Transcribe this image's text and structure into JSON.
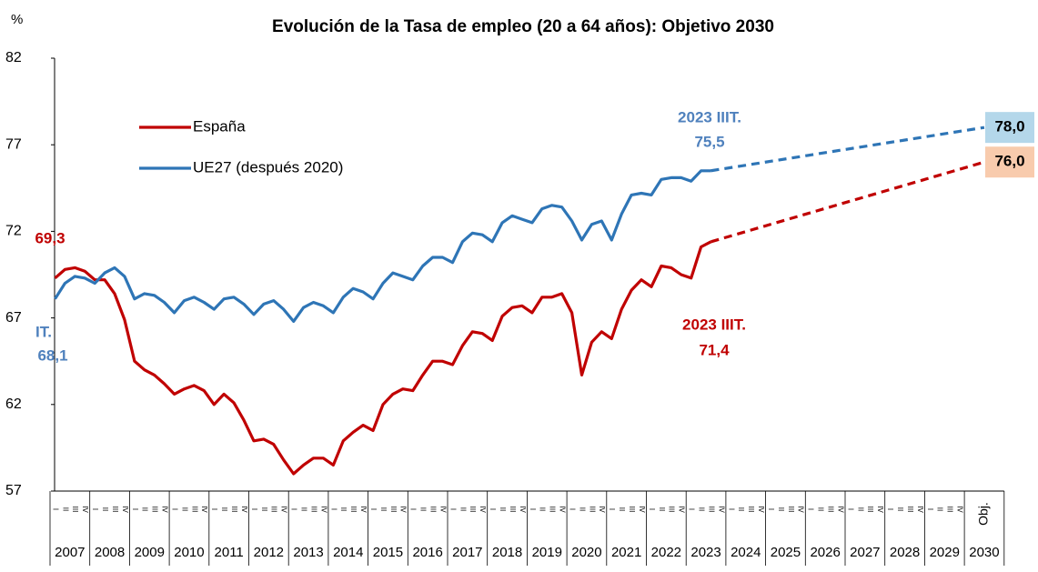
{
  "chart_data": {
    "type": "line",
    "title": "Evolución de la Tasa de empleo (20 a 64 años): Objetivo 2030",
    "y_unit": "%",
    "ylim": [
      57,
      82
    ],
    "yticks": [
      57,
      62,
      67,
      72,
      77,
      82
    ],
    "years": [
      "2007",
      "2008",
      "2009",
      "2010",
      "2011",
      "2012",
      "2013",
      "2014",
      "2015",
      "2016",
      "2017",
      "2018",
      "2019",
      "2020",
      "2021",
      "2022",
      "2023",
      "2024",
      "2025",
      "2026",
      "2027",
      "2028",
      "2029",
      "2030"
    ],
    "quarters": [
      "I",
      "II",
      "III",
      "IV"
    ],
    "target_label": "Obj.",
    "series": [
      {
        "name": "España",
        "color": "#c00000",
        "values": [
          69.3,
          69.8,
          69.9,
          69.7,
          69.2,
          69.2,
          68.4,
          66.9,
          64.5,
          64.0,
          63.7,
          63.2,
          62.6,
          62.9,
          63.1,
          62.8,
          62.0,
          62.6,
          62.1,
          61.1,
          59.9,
          60.0,
          59.7,
          58.8,
          58.0,
          58.5,
          58.9,
          58.9,
          58.5,
          59.9,
          60.4,
          60.8,
          60.5,
          62.0,
          62.6,
          62.9,
          62.8,
          63.7,
          64.5,
          64.5,
          64.3,
          65.4,
          66.2,
          66.1,
          65.7,
          67.1,
          67.6,
          67.7,
          67.3,
          68.2,
          68.2,
          68.4,
          67.3,
          63.7,
          65.6,
          66.2,
          65.8,
          67.5,
          68.6,
          69.2,
          68.8,
          70.0,
          69.9,
          69.5,
          69.3,
          71.1,
          71.4
        ],
        "target": 76.0,
        "target_label": "76,0",
        "target_box": "#f8cbad"
      },
      {
        "name": "UE27 (después 2020)",
        "color": "#2e75b6",
        "values": [
          68.1,
          69.0,
          69.4,
          69.3,
          69.0,
          69.6,
          69.9,
          69.4,
          68.1,
          68.4,
          68.3,
          67.9,
          67.3,
          68.0,
          68.2,
          67.9,
          67.5,
          68.1,
          68.2,
          67.8,
          67.2,
          67.8,
          68.0,
          67.5,
          66.8,
          67.6,
          67.9,
          67.7,
          67.3,
          68.2,
          68.7,
          68.5,
          68.1,
          69.0,
          69.6,
          69.4,
          69.2,
          70.0,
          70.5,
          70.5,
          70.2,
          71.4,
          71.9,
          71.8,
          71.4,
          72.5,
          72.9,
          72.7,
          72.5,
          73.3,
          73.5,
          73.4,
          72.6,
          71.5,
          72.4,
          72.6,
          71.5,
          73.0,
          74.1,
          74.2,
          74.1,
          75.0,
          75.1,
          75.1,
          74.9,
          75.5,
          75.5
        ],
        "target": 78.0,
        "target_label": "78,0",
        "target_box": "#b4d7ea"
      }
    ],
    "annotations": [
      {
        "text": "69,3",
        "color": "#c00000"
      },
      {
        "text": "IT.",
        "color": "#4f81bd"
      },
      {
        "text": "68,1",
        "color": "#4f81bd"
      },
      {
        "text": "2023 IIIT.",
        "color": "#4f81bd"
      },
      {
        "text": "75,5",
        "color": "#4f81bd"
      },
      {
        "text": "2023 IIIT.",
        "color": "#c00000"
      },
      {
        "text": "71,4",
        "color": "#c00000"
      }
    ]
  }
}
